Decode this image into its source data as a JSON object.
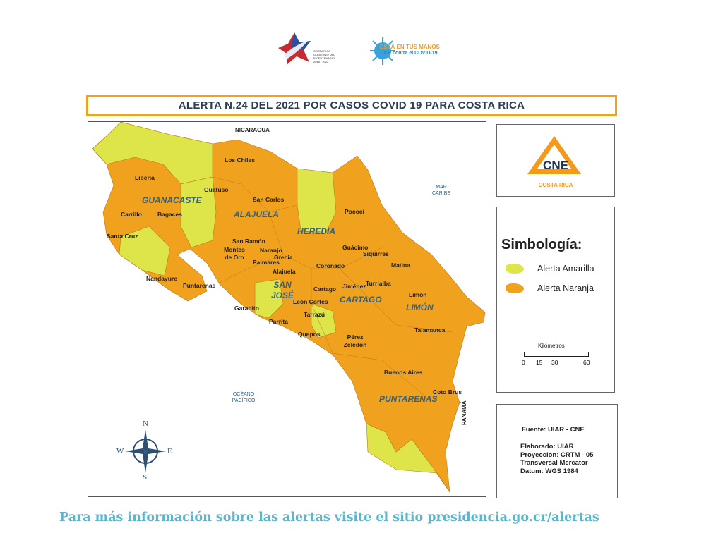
{
  "header": {
    "logo_left_text": [
      "COSTA RICA",
      "GOBIERNO DEL BICENTENARIO",
      "2018 - 2022"
    ],
    "logo_right_text": [
      "ESTÁ EN TUS MANOS",
      "CR contra el COVID-19"
    ]
  },
  "title": "ALERTA N.24 DEL 2021 POR CASOS COVID 19 PARA COSTA RICA",
  "map": {
    "neighbors": {
      "north": "NICARAGUA",
      "south": "PANAMÁ",
      "sea_east": "MAR CARIBE",
      "ocean_west": "OCÉANO PACÍFICO"
    },
    "provinces": [
      "GUANACASTE",
      "ALAJUELA",
      "HEREDIA",
      "SAN JOSÉ",
      "CARTAGO",
      "LIMÓN",
      "PUNTARENAS"
    ],
    "cantons": [
      "Los Chiles",
      "Liberia",
      "Guatuso",
      "San Carlos",
      "Carrillo",
      "Bagaces",
      "Pococí",
      "Santa Cruz",
      "San Ramón",
      "Guácimo",
      "Siquirres",
      "Montes de Oro",
      "Naranjo",
      "Grecia",
      "Palmares",
      "Coronado",
      "Matina",
      "Nandayure",
      "Alajuela",
      "Puntarenas",
      "Turrialba",
      "Jiménez",
      "Cartago",
      "Limón",
      "León Cortes",
      "Garabito",
      "Tarrazú",
      "Talamanca",
      "Parrita",
      "Quepos",
      "Pérez Zeledón",
      "Buenos Aires",
      "Coto Brus"
    ],
    "compass": {
      "n": "N",
      "s": "S",
      "e": "E",
      "w": "W"
    },
    "colors": {
      "alerta_amarilla": "#DDE548",
      "alerta_naranja": "#F0A21E"
    }
  },
  "logo": {
    "text": "CNE",
    "subtitle": "COSTA RICA"
  },
  "legend": {
    "title": "Simbología:",
    "items": [
      {
        "label": "Alerta Amarilla",
        "color": "#DDE548"
      },
      {
        "label": "Alerta Naranja",
        "color": "#F0A21E"
      }
    ]
  },
  "scale": {
    "title": "Kilómetros",
    "ticks": [
      "0",
      "15",
      "30",
      "60"
    ]
  },
  "info": {
    "source": "Fuente: UIAR - CNE",
    "lines": [
      "Elaborado: UIAR",
      "Proyección: CRTM - 05",
      "Transversal Mercator",
      "Datum: WGS 1984"
    ]
  },
  "footer": "Para más información sobre las alertas visite el sitio presidencia.go.cr/alertas"
}
